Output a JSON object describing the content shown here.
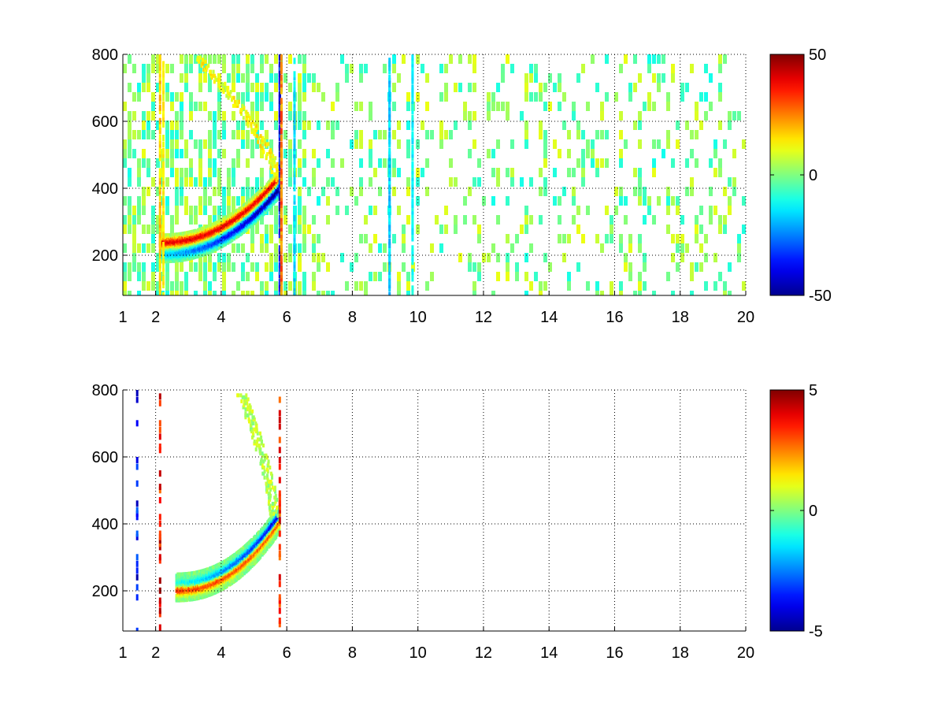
{
  "figure": {
    "colormap": "jet",
    "colormap_stops": [
      "#00008f",
      "#0000ff",
      "#00ffff",
      "#ffff00",
      "#ff0000",
      "#800000"
    ]
  },
  "chart_data": [
    {
      "type": "heatmap",
      "title": "",
      "xlabel": "",
      "ylabel": "",
      "xlim": [
        1,
        20
      ],
      "ylim": [
        80,
        800
      ],
      "xticks": [
        1,
        2,
        4,
        6,
        8,
        10,
        12,
        14,
        16,
        18,
        20
      ],
      "xtick_labels": [
        "1",
        "2",
        "4",
        "6",
        "8",
        "10",
        "12",
        "14",
        "16",
        "18",
        "20"
      ],
      "yticks": [
        200,
        400,
        600,
        800
      ],
      "ytick_labels": [
        "200",
        "400",
        "600",
        "800"
      ],
      "grid": true,
      "colorbar": {
        "clim": [
          -50,
          50
        ],
        "ticks": [
          -50,
          0,
          50
        ],
        "tick_labels": [
          "-50",
          "0",
          "50"
        ]
      },
      "features": {
        "ridge": {
          "x_start": 2.1,
          "x_end": 5.75,
          "y_start": 225,
          "y_end": 420,
          "positive_offset": 18,
          "negative_offset": -18,
          "peak_value": 40
        },
        "upper_arc": {
          "x_start": 3.2,
          "x_end": 5.7,
          "y_start": 430,
          "y_end": 800,
          "value": 12
        },
        "vertical_streaks": [
          {
            "x": 2.1,
            "value": 20
          },
          {
            "x": 2.2,
            "value": 15
          },
          {
            "x": 5.75,
            "value": -45
          },
          {
            "x": 5.8,
            "value": 30
          },
          {
            "x": 6.2,
            "value": -18
          },
          {
            "x": 9.1,
            "value": -20
          },
          {
            "x": 9.8,
            "value": -15
          }
        ],
        "noise_density_near": 0.55,
        "noise_density_far": 0.22
      }
    },
    {
      "type": "heatmap",
      "title": "",
      "xlabel": "",
      "ylabel": "",
      "xlim": [
        1,
        20
      ],
      "ylim": [
        80,
        800
      ],
      "xticks": [
        1,
        2,
        4,
        6,
        8,
        10,
        12,
        14,
        16,
        18,
        20
      ],
      "xtick_labels": [
        "1",
        "2",
        "4",
        "6",
        "8",
        "10",
        "12",
        "14",
        "16",
        "18",
        "20"
      ],
      "yticks": [
        200,
        400,
        600,
        800
      ],
      "ytick_labels": [
        "200",
        "400",
        "600",
        "800"
      ],
      "grid": true,
      "colorbar": {
        "clim": [
          -5,
          5
        ],
        "ticks": [
          -5,
          0,
          5
        ],
        "tick_labels": [
          "-5",
          "0",
          "5"
        ]
      },
      "features": {
        "ridge": {
          "x_start": 2.6,
          "x_end": 5.75,
          "y_start": 215,
          "y_end": 420,
          "positive_offset": -8,
          "negative_offset": 10,
          "peak_value": 3.5
        },
        "upper_arc": {
          "x_start": 4.6,
          "x_end": 5.6,
          "y_start": 430,
          "y_end": 790,
          "value": 0.5
        },
        "vertical_streaks": [
          {
            "x": 1.4,
            "value": -4.5
          },
          {
            "x": 2.1,
            "value": 4.5
          },
          {
            "x": 5.75,
            "value": 4
          }
        ],
        "noise_density_near": 0.0,
        "noise_density_far": 0.0
      }
    }
  ]
}
